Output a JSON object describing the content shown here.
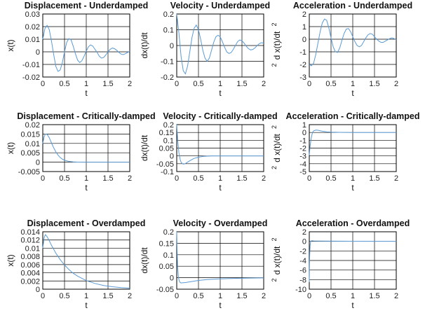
{
  "figure": {
    "style": {
      "line_color": "#5b9bd5",
      "grid": true,
      "background": "#ffffff"
    }
  },
  "chart_data": [
    {
      "type": "line",
      "title": "Displacement - Underdamped",
      "xlabel": "t",
      "ylabel": "x(t)",
      "ylabel_exponent": "",
      "xlim": [
        0,
        2
      ],
      "ylim": [
        -0.02,
        0.03
      ],
      "xticks": [
        "0",
        "0.5",
        "1",
        "1.5",
        "2"
      ],
      "yticks": [
        "-0.02",
        "-0.01",
        "0",
        "0.01",
        "0.02",
        "0.03"
      ],
      "series": [
        {
          "x": [
            0,
            0.05,
            0.1,
            0.15,
            0.2,
            0.25,
            0.3,
            0.35,
            0.4,
            0.45,
            0.5,
            0.55,
            0.6,
            0.65,
            0.7,
            0.75,
            0.8,
            0.85,
            0.9,
            0.95,
            1.0,
            1.05,
            1.1,
            1.15,
            1.2,
            1.25,
            1.3,
            1.35,
            1.4,
            1.45,
            1.5,
            1.55,
            1.6,
            1.65,
            1.7,
            1.75,
            1.8,
            1.85,
            1.9,
            1.95,
            2.0
          ],
          "y": [
            0.01,
            0.0185,
            0.021,
            0.0175,
            0.0085,
            -0.002,
            -0.0115,
            -0.0155,
            -0.0145,
            -0.0085,
            0.0,
            0.0075,
            0.0105,
            0.0095,
            0.0045,
            -0.0015,
            -0.0065,
            -0.0085,
            -0.007,
            -0.0035,
            0.0005,
            0.004,
            0.0055,
            0.0045,
            0.002,
            -0.0005,
            -0.0035,
            -0.005,
            -0.0045,
            -0.0025,
            0.0,
            0.002,
            0.003,
            0.0025,
            0.0012,
            -0.0005,
            -0.0018,
            -0.0022,
            -0.0015,
            -0.0005,
            0.0005
          ]
        }
      ]
    },
    {
      "type": "line",
      "title": "Velocity - Underdamped",
      "xlabel": "t",
      "ylabel": "dx(t)/dt",
      "ylabel_exponent": "",
      "xlim": [
        0,
        2
      ],
      "ylim": [
        -0.2,
        0.2
      ],
      "xticks": [
        "0",
        "0.5",
        "1",
        "1.5",
        "2"
      ],
      "yticks": [
        "-0.2",
        "-0.1",
        "0",
        "0.1",
        "0.2"
      ],
      "series": [
        {
          "x": [
            0,
            0.05,
            0.1,
            0.15,
            0.2,
            0.25,
            0.3,
            0.35,
            0.4,
            0.45,
            0.5,
            0.55,
            0.6,
            0.65,
            0.7,
            0.75,
            0.8,
            0.85,
            0.9,
            0.95,
            1.0,
            1.05,
            1.1,
            1.15,
            1.2,
            1.25,
            1.3,
            1.35,
            1.4,
            1.45,
            1.5,
            1.55,
            1.6,
            1.65,
            1.7,
            1.75,
            1.8,
            1.85,
            1.9,
            1.95,
            2.0
          ],
          "y": [
            0.2,
            0.08,
            -0.07,
            -0.16,
            -0.18,
            -0.13,
            -0.04,
            0.05,
            0.11,
            0.13,
            0.1,
            0.04,
            -0.03,
            -0.08,
            -0.1,
            -0.08,
            -0.03,
            0.02,
            0.055,
            0.065,
            0.055,
            0.025,
            -0.01,
            -0.04,
            -0.05,
            -0.045,
            -0.025,
            0.0,
            0.025,
            0.035,
            0.03,
            0.015,
            -0.005,
            -0.02,
            -0.028,
            -0.025,
            -0.015,
            0.0,
            0.012,
            0.018,
            0.015
          ]
        }
      ]
    },
    {
      "type": "line",
      "title": "Acceleration - Underdamped",
      "xlabel": "t",
      "ylabel": "d x(t)/dt",
      "ylabel_exponent": "2",
      "xlim": [
        0,
        2
      ],
      "ylim": [
        -3,
        2
      ],
      "xticks": [
        "0",
        "0.5",
        "1",
        "1.5",
        "2"
      ],
      "yticks": [
        "-3",
        "-2",
        "-1",
        "0",
        "1",
        "2"
      ],
      "series": [
        {
          "x": [
            0,
            0.05,
            0.1,
            0.15,
            0.2,
            0.25,
            0.3,
            0.35,
            0.4,
            0.45,
            0.5,
            0.55,
            0.6,
            0.65,
            0.7,
            0.75,
            0.8,
            0.85,
            0.9,
            0.95,
            1.0,
            1.05,
            1.1,
            1.15,
            1.2,
            1.25,
            1.3,
            1.35,
            1.4,
            1.45,
            1.5,
            1.55,
            1.6,
            1.65,
            1.7,
            1.75,
            1.8,
            1.85,
            1.9,
            1.95,
            2.0
          ],
          "y": [
            -2.0,
            -2.1,
            -1.9,
            -1.2,
            -0.3,
            0.6,
            1.3,
            1.6,
            1.5,
            0.9,
            0.1,
            -0.6,
            -1.0,
            -1.05,
            -0.7,
            -0.1,
            0.45,
            0.8,
            0.85,
            0.6,
            0.2,
            -0.2,
            -0.5,
            -0.6,
            -0.5,
            -0.2,
            0.1,
            0.35,
            0.45,
            0.4,
            0.2,
            0.0,
            -0.15,
            -0.25,
            -0.25,
            -0.15,
            -0.05,
            0.05,
            0.1,
            0.05,
            -0.05
          ]
        }
      ]
    },
    {
      "type": "line",
      "title": "Displacement - Critically-damped",
      "xlabel": "t",
      "ylabel": "x(t)",
      "ylabel_exponent": "",
      "xlim": [
        0,
        2
      ],
      "ylim": [
        -0.005,
        0.02
      ],
      "xticks": [
        "0",
        "0.5",
        "1",
        "1.5",
        "2"
      ],
      "yticks": [
        "-0.005",
        "0",
        "0.005",
        "0.01",
        "0.015",
        "0.02"
      ],
      "series": [
        {
          "x": [
            0,
            0.03,
            0.06,
            0.1,
            0.15,
            0.2,
            0.25,
            0.3,
            0.35,
            0.4,
            0.45,
            0.5,
            0.6,
            0.7,
            0.8,
            1.0,
            1.5,
            2.0
          ],
          "y": [
            0.01,
            0.0135,
            0.015,
            0.0148,
            0.013,
            0.0103,
            0.0077,
            0.0055,
            0.0038,
            0.0025,
            0.0016,
            0.001,
            0.0004,
            0.00015,
            5e-05,
            0.0,
            0.0,
            0.0
          ]
        }
      ]
    },
    {
      "type": "line",
      "title": "Velocity - Critically-damped",
      "xlabel": "t",
      "ylabel": "dx(t)/dt",
      "ylabel_exponent": "",
      "xlim": [
        0,
        2
      ],
      "ylim": [
        -0.1,
        0.2
      ],
      "xticks": [
        "0",
        "0.5",
        "1",
        "1.5",
        "2"
      ],
      "yticks": [
        "-0.1",
        "-0.05",
        "0",
        "0.05",
        "0.1",
        "0.15",
        "0.2"
      ],
      "series": [
        {
          "x": [
            0,
            0.02,
            0.05,
            0.08,
            0.1,
            0.13,
            0.16,
            0.2,
            0.25,
            0.3,
            0.35,
            0.4,
            0.5,
            0.6,
            0.7,
            0.8,
            1.0,
            1.5,
            2.0
          ],
          "y": [
            0.2,
            0.11,
            0.02,
            -0.025,
            -0.04,
            -0.05,
            -0.052,
            -0.049,
            -0.04,
            -0.031,
            -0.023,
            -0.016,
            -0.008,
            -0.0035,
            -0.0015,
            -0.0006,
            0.0,
            0.0,
            0.0
          ]
        }
      ]
    },
    {
      "type": "line",
      "title": "Acceleration - Critically-damped",
      "xlabel": "t",
      "ylabel": "d x(t)/dt",
      "ylabel_exponent": "2",
      "xlim": [
        0,
        2
      ],
      "ylim": [
        -5,
        1
      ],
      "xticks": [
        "0",
        "0.5",
        "1",
        "1.5",
        "2"
      ],
      "yticks": [
        "-5",
        "-4",
        "-3",
        "-2",
        "-1",
        "0",
        "1"
      ],
      "series": [
        {
          "x": [
            0,
            0.02,
            0.04,
            0.06,
            0.08,
            0.1,
            0.15,
            0.2,
            0.25,
            0.3,
            0.4,
            0.5,
            0.6,
            0.8,
            1.0,
            1.5,
            2.0
          ],
          "y": [
            -2.9,
            -1.7,
            -0.9,
            -0.3,
            0.05,
            0.2,
            0.3,
            0.28,
            0.22,
            0.16,
            0.08,
            0.04,
            0.02,
            0.005,
            0.0,
            0.0,
            0.0
          ]
        }
      ]
    },
    {
      "type": "line",
      "title": "Displacement - Overdamped",
      "xlabel": "t",
      "ylabel": "x(t)",
      "ylabel_exponent": "",
      "xlim": [
        0,
        2
      ],
      "ylim": [
        0,
        0.014
      ],
      "xticks": [
        "0",
        "0.5",
        "1",
        "1.5",
        "2"
      ],
      "yticks": [
        "0",
        "0.002",
        "0.004",
        "0.006",
        "0.008",
        "0.01",
        "0.012",
        "0.014"
      ],
      "series": [
        {
          "x": [
            0,
            0.03,
            0.06,
            0.1,
            0.15,
            0.2,
            0.3,
            0.4,
            0.5,
            0.6,
            0.7,
            0.8,
            1.0,
            1.2,
            1.4,
            1.6,
            1.8,
            2.0
          ],
          "y": [
            0.01,
            0.0125,
            0.0133,
            0.0128,
            0.0118,
            0.0107,
            0.0088,
            0.0072,
            0.0059,
            0.0048,
            0.0039,
            0.0032,
            0.0021,
            0.0014,
            0.0009,
            0.0006,
            0.0004,
            0.00025
          ]
        }
      ]
    },
    {
      "type": "line",
      "title": "Velocity - Overdamped",
      "xlabel": "t",
      "ylabel": "dx(t)/dt",
      "ylabel_exponent": "",
      "xlim": [
        0,
        2
      ],
      "ylim": [
        -0.05,
        0.2
      ],
      "xticks": [
        "0",
        "0.5",
        "1",
        "1.5",
        "2"
      ],
      "yticks": [
        "-0.05",
        "0",
        "0.05",
        "0.1",
        "0.15",
        "0.2"
      ],
      "series": [
        {
          "x": [
            0,
            0.01,
            0.02,
            0.04,
            0.06,
            0.08,
            0.1,
            0.15,
            0.2,
            0.3,
            0.4,
            0.5,
            0.7,
            1.0,
            1.3,
            1.6,
            2.0
          ],
          "y": [
            0.2,
            0.11,
            0.05,
            0.0,
            -0.015,
            -0.021,
            -0.023,
            -0.022,
            -0.021,
            -0.018,
            -0.015,
            -0.012,
            -0.008,
            -0.005,
            -0.003,
            -0.002,
            -0.001
          ]
        }
      ]
    },
    {
      "type": "line",
      "title": "Acceleration - Overdamped",
      "xlabel": "t",
      "ylabel": "d x(t)/dt",
      "ylabel_exponent": "2",
      "xlim": [
        0,
        2
      ],
      "ylim": [
        -10,
        2
      ],
      "xticks": [
        "0",
        "0.5",
        "1",
        "1.5",
        "2"
      ],
      "yticks": [
        "-10",
        "-8",
        "-6",
        "-4",
        "-2",
        "0",
        "2"
      ],
      "series": [
        {
          "x": [
            0,
            0.005,
            0.01,
            0.02,
            0.03,
            0.05,
            0.08,
            0.1,
            0.2,
            0.5,
            1.0,
            1.5,
            2.0
          ],
          "y": [
            -8.5,
            -5.0,
            -2.8,
            -0.8,
            -0.1,
            0.12,
            0.1,
            0.09,
            0.07,
            0.04,
            0.02,
            0.01,
            0.005
          ]
        }
      ]
    }
  ]
}
